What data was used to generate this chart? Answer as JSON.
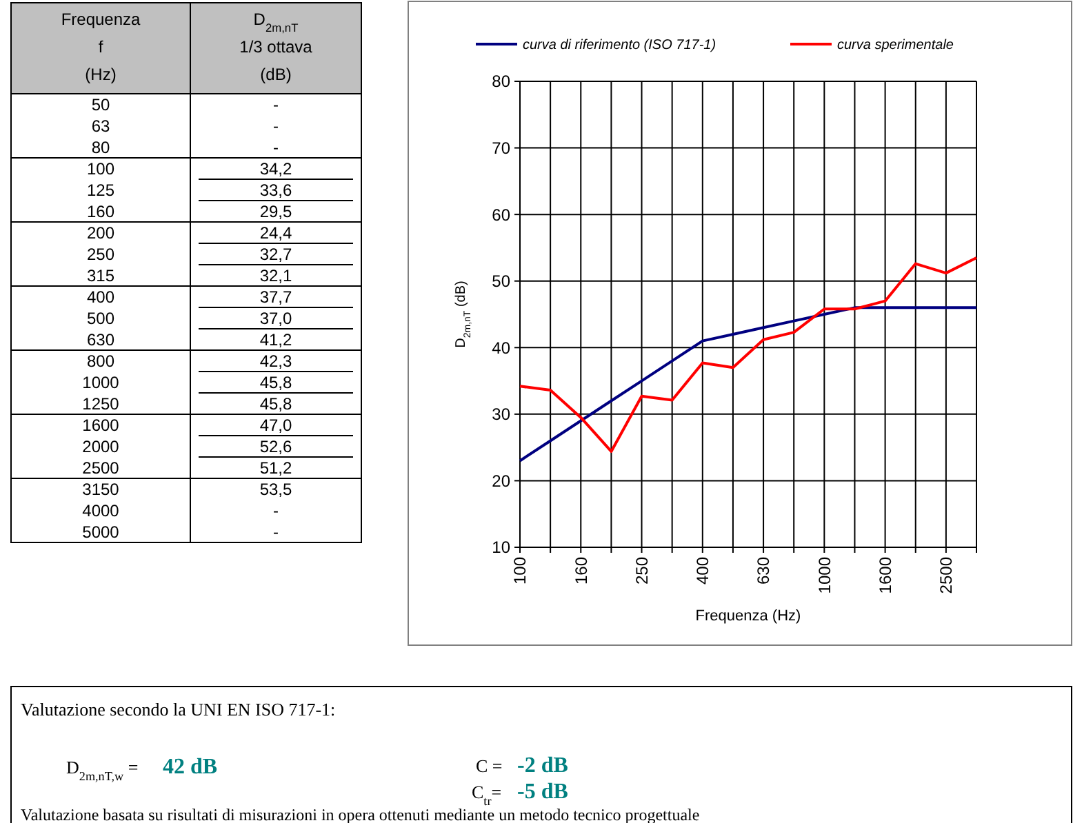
{
  "chart_data": [
    {
      "type": "other",
      "annotations": [
        "Frequenza",
        "f",
        "(Hz)",
        "D$_{2m,nT}$",
        "1/3 ottava",
        "(dB)"
      ],
      "categories": [
        "50",
        "63",
        "80",
        "100",
        "125",
        "160",
        "200",
        "250",
        "315",
        "400",
        "500",
        "630",
        "800",
        "1000",
        "1250",
        "1600",
        "2000",
        "2500",
        "3150",
        "4000",
        "5000"
      ],
      "value_labels": [
        "-",
        "-",
        "-",
        "34,2",
        "33,6",
        "29,5",
        "24,4",
        "32,7",
        "32,1",
        "37,7",
        "37,0",
        "41,2",
        "42,3",
        "45,8",
        "45,8",
        "47,0",
        "52,6",
        "51,2",
        "53,5",
        "-",
        "-"
      ]
    },
    {
      "type": "line",
      "xlabel": "Frequenza (Hz)",
      "ylabel": "D$_{2m,nT}$ (dB)",
      "categories": [
        "100",
        null,
        "160",
        null,
        "250",
        null,
        "400",
        null,
        "630",
        null,
        "1000",
        null,
        "1600",
        null,
        "2500",
        null
      ],
      "series": [
        {
          "name": "curva di riferimento (ISO 717-1)",
          "color": "#000080",
          "values": [
            23,
            26,
            29,
            32,
            35,
            38,
            41,
            42,
            43,
            44,
            45,
            46,
            46,
            46,
            46,
            46
          ]
        },
        {
          "name": "curva sperimentale",
          "color": "#ff0000",
          "values": [
            34.2,
            33.6,
            29.5,
            24.4,
            32.7,
            32.1,
            37.7,
            37.0,
            41.2,
            42.3,
            45.8,
            45.8,
            47.0,
            52.6,
            51.2,
            53.5
          ]
        }
      ],
      "ylim": [
        10,
        80
      ],
      "yticks": [
        10,
        20,
        30,
        40,
        50,
        60,
        70,
        80
      ],
      "grid": true,
      "legend": "top"
    },
    {
      "type": "other",
      "annotations": [
        "Valutazione secondo la UNI EN ISO 717-1:",
        "D$_{2m,nT,w}$ =",
        "42 dB",
        "C =",
        "-2 dB",
        "C$_{tr}$=",
        "-5 dB",
        "Valutazione basata su risultati di misurazioni in opera ottenuti mediante un metodo tecnico progettuale"
      ]
    }
  ]
}
